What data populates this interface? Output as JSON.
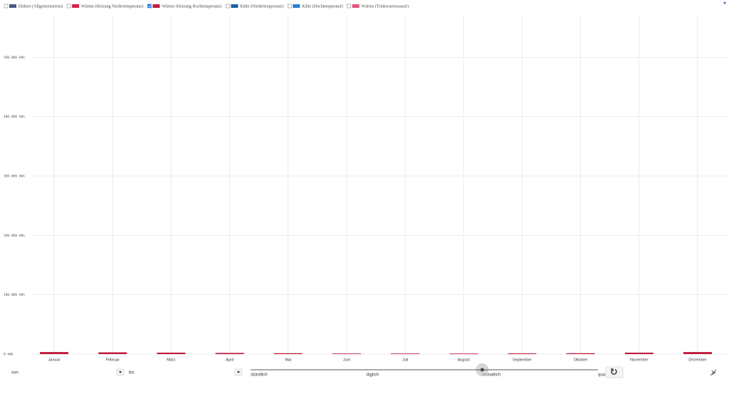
{
  "chart_data": {
    "type": "bar",
    "legend": [
      {
        "name": "Elektro (Allgemeinstrom)",
        "color": "#4a5b82",
        "checked": false
      },
      {
        "name": "Wärme (Heizung Niedertemperatur)",
        "color": "#d62048",
        "checked": false
      },
      {
        "name": "Wärme (Heizung Hochtemperatur)",
        "color": "#c01c3c",
        "checked": true
      },
      {
        "name": "Kälte (Niedertemperatur)",
        "color": "#1d5f9e",
        "checked": false
      },
      {
        "name": "Kälte (Hochtemperatur)",
        "color": "#2a7ecf",
        "checked": false
      },
      {
        "name": "Wärme (Trinkwarmwasser)",
        "color": "#e2557a",
        "checked": false
      }
    ],
    "categories": [
      "Januar",
      "Februar",
      "März",
      "April",
      "Mai",
      "Juni",
      "Juli",
      "August",
      "September",
      "Oktober",
      "November",
      "Dezember"
    ],
    "values": [
      3500,
      3000,
      2500,
      2000,
      1500,
      1000,
      1000,
      1000,
      1200,
      1500,
      2500,
      3500
    ],
    "color": "#c01c3c",
    "ylim": [
      0,
      570000
    ],
    "yticks": [
      {
        "value": 0,
        "label": "0 kWh"
      },
      {
        "value": 100000,
        "label": "100.000 kWh"
      },
      {
        "value": 200000,
        "label": "200.000 kWh"
      },
      {
        "value": 300000,
        "label": "300.000 kWh"
      },
      {
        "value": 400000,
        "label": "400.000 kWh"
      },
      {
        "value": 500000,
        "label": "500.000 kWh"
      }
    ],
    "grid": true
  },
  "controls": {
    "from_label": "von",
    "to_label": "bis",
    "resolution": {
      "options": [
        "stündlich",
        "täglich",
        "monatlich",
        "quar"
      ],
      "selected": 2
    }
  }
}
